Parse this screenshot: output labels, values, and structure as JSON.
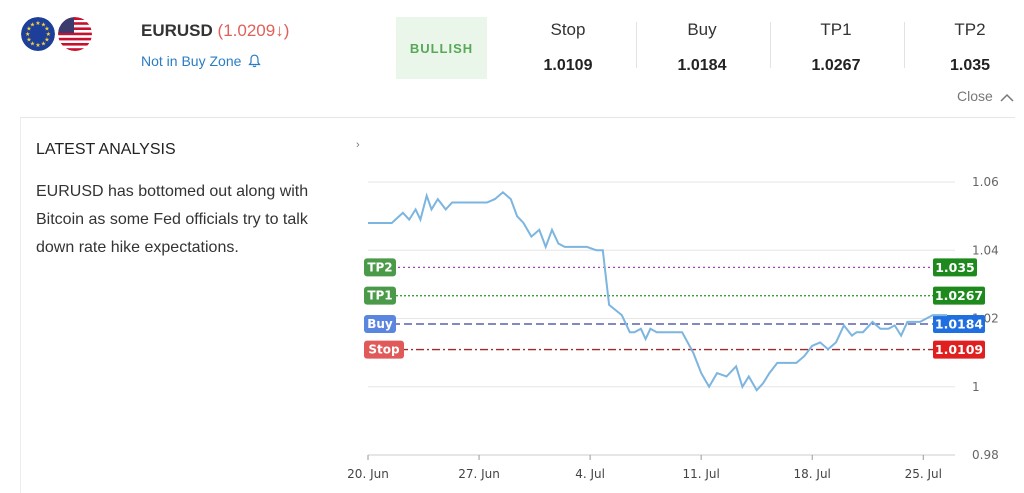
{
  "instrument": {
    "symbol": "EURUSD",
    "price": "(1.0209↓)",
    "zone_status": "Not in Buy Zone",
    "flags": [
      "eu-flag-icon",
      "us-flag-icon"
    ]
  },
  "signal": {
    "label": "BULLISH",
    "color": "#58a858"
  },
  "levels": [
    {
      "label": "Stop",
      "value": "1.0109"
    },
    {
      "label": "Buy",
      "value": "1.0184"
    },
    {
      "label": "TP1",
      "value": "1.0267"
    },
    {
      "label": "TP2",
      "value": "1.035"
    }
  ],
  "close_label": "Close",
  "analysis": {
    "title": "LATEST ANALYSIS",
    "text": "EURUSD has bottomed out along with Bitcoin as some Fed officials try to talk down rate hike expectations."
  },
  "chart_data": {
    "type": "line",
    "title": "",
    "xlabel": "",
    "ylabel": "",
    "x_ticks": [
      "20. Jun",
      "27. Jun",
      "4. Jul",
      "11. Jul",
      "18. Jul",
      "25. Jul"
    ],
    "y_ticks": [
      "0.98",
      "1",
      "1.02",
      "1.04",
      "1.06"
    ],
    "ylim": [
      0.98,
      1.065
    ],
    "xlim": [
      0,
      37
    ],
    "grid": true,
    "series": [
      {
        "color": "#7cb5e0",
        "x": [
          0,
          1.5,
          2.2,
          2.6,
          3.0,
          3.3,
          3.7,
          4.0,
          4.4,
          4.9,
          5.3,
          5.7,
          6.0,
          6.5,
          7.0,
          7.5,
          8.0,
          8.5,
          9.0,
          9.4,
          9.8,
          10.3,
          10.8,
          11.2,
          11.6,
          12.0,
          12.4,
          12.9,
          13.3,
          13.8,
          14.4,
          14.8,
          15.2,
          16.0,
          16.5,
          16.8,
          17.2,
          17.5,
          17.8,
          18.2,
          18.7,
          19.2,
          19.8,
          20.5,
          21.0,
          21.5,
          22.0,
          22.6,
          23.2,
          23.6,
          24.0,
          24.5,
          24.9,
          25.3,
          25.8,
          26.3,
          27.0,
          27.5,
          28.0,
          28.5,
          29.0,
          29.5,
          30.0,
          30.5,
          30.8,
          31.2,
          31.8,
          32.3,
          32.8,
          33.2,
          33.6,
          34.0,
          34.4,
          34.8,
          35.2,
          35.6,
          36.0,
          36.5
        ],
        "y": [
          1.048,
          1.048,
          1.051,
          1.049,
          1.052,
          1.049,
          1.056,
          1.052,
          1.055,
          1.052,
          1.054,
          1.054,
          1.054,
          1.054,
          1.054,
          1.054,
          1.055,
          1.057,
          1.055,
          1.05,
          1.048,
          1.044,
          1.046,
          1.041,
          1.046,
          1.042,
          1.041,
          1.041,
          1.041,
          1.041,
          1.04,
          1.04,
          1.024,
          1.021,
          1.016,
          1.016,
          1.017,
          1.014,
          1.017,
          1.016,
          1.016,
          1.016,
          1.016,
          1.01,
          1.004,
          1.0,
          1.004,
          1.003,
          1.006,
          1.0,
          1.003,
          0.999,
          1.001,
          1.004,
          1.007,
          1.007,
          1.007,
          1.009,
          1.012,
          1.013,
          1.011,
          1.013,
          1.018,
          1.015,
          1.016,
          1.016,
          1.019,
          1.017,
          1.017,
          1.018,
          1.015,
          1.019,
          1.019,
          1.019,
          1.02,
          1.021,
          1.021,
          1.021
        ]
      }
    ],
    "levels": [
      {
        "name": "TP2",
        "value": 1.035,
        "label": "1.035",
        "color": "#1e8a1e",
        "line_color": "#a048b0",
        "dash": "2,3"
      },
      {
        "name": "TP1",
        "value": 1.0267,
        "label": "1.0267",
        "color": "#1e8a1e",
        "line_color": "#3aa03a",
        "dash": "2,2"
      },
      {
        "name": "Buy",
        "value": 1.0184,
        "label": "1.0184",
        "color": "#1f6fe0",
        "line_color": "#3840a0",
        "dash": "8,4"
      },
      {
        "name": "Stop",
        "value": 1.0109,
        "label": "1.0109",
        "color": "#e02020",
        "line_color": "#a02828",
        "dash": "8,3,2,3"
      }
    ],
    "level_left_colors": {
      "TP2": "#4a9a4a",
      "TP1": "#4a9a4a",
      "Buy": "#5b86e0",
      "Stop": "#e05a5a"
    }
  }
}
